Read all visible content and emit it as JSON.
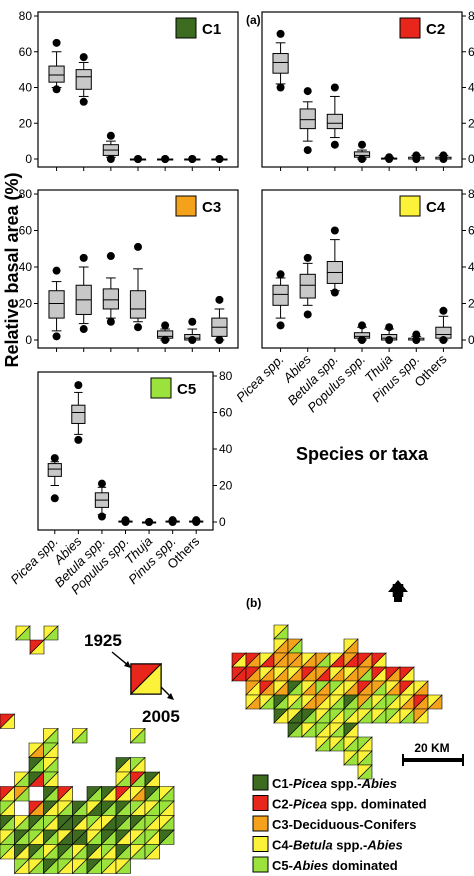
{
  "panel_a_label": "(a)",
  "panel_b_label": "(b)",
  "y_axis_label": "Relative basal area (%)",
  "x_axis_label": "Species or taxa",
  "species": [
    "Picea spp.",
    "Abies",
    "Betula spp.",
    "Populus spp.",
    "Thuja",
    "Pinus spp.",
    "Others"
  ],
  "species_italic": [
    true,
    true,
    true,
    true,
    true,
    true,
    false
  ],
  "y_ticks": [
    0,
    20,
    40,
    60,
    80
  ],
  "colors": {
    "C1": "#3d6b1f",
    "C2": "#e8261c",
    "C3": "#f4a21c",
    "C4": "#fcf23a",
    "C5": "#9be33c",
    "box_fill": "#c8c8c8"
  },
  "chart_data": [
    {
      "type": "box",
      "cluster": "C1",
      "ylim": [
        0,
        80
      ],
      "boxes": [
        {
          "outlier_hi": 65,
          "whisker_hi": 60,
          "q3": 52,
          "median": 47,
          "q1": 43,
          "whisker_lo": 40,
          "outlier_lo": 39
        },
        {
          "outlier_hi": 57,
          "whisker_hi": 54,
          "q3": 50,
          "median": 46,
          "q1": 39,
          "whisker_lo": 35,
          "outlier_lo": 32
        },
        {
          "outlier_hi": 13,
          "whisker_hi": 10,
          "q3": 8,
          "median": 5,
          "q1": 2,
          "whisker_lo": 1,
          "outlier_lo": 0
        },
        {
          "outlier_hi": 0,
          "whisker_hi": 0,
          "q3": 0,
          "median": 0,
          "q1": 0,
          "whisker_lo": 0,
          "outlier_lo": 0
        },
        {
          "outlier_hi": 0,
          "whisker_hi": 0,
          "q3": 0,
          "median": 0,
          "q1": 0,
          "whisker_lo": 0,
          "outlier_lo": 0
        },
        {
          "outlier_hi": 0,
          "whisker_hi": 0,
          "q3": 0,
          "median": 0,
          "q1": 0,
          "whisker_lo": 0,
          "outlier_lo": 0
        },
        {
          "outlier_hi": 0,
          "whisker_hi": 0,
          "q3": 0,
          "median": 0,
          "q1": 0,
          "whisker_lo": 0,
          "outlier_lo": 0
        }
      ]
    },
    {
      "type": "box",
      "cluster": "C2",
      "ylim": [
        0,
        80
      ],
      "boxes": [
        {
          "outlier_hi": 70,
          "whisker_hi": 65,
          "q3": 59,
          "median": 54,
          "q1": 48,
          "whisker_lo": 42,
          "outlier_lo": 40
        },
        {
          "outlier_hi": 38,
          "whisker_hi": 32,
          "q3": 28,
          "median": 22,
          "q1": 17,
          "whisker_lo": 10,
          "outlier_lo": 5
        },
        {
          "outlier_hi": 40,
          "whisker_hi": 35,
          "q3": 25,
          "median": 20,
          "q1": 17,
          "whisker_lo": 12,
          "outlier_lo": 8
        },
        {
          "outlier_hi": 8,
          "whisker_hi": 5,
          "q3": 4,
          "median": 2,
          "q1": 1,
          "whisker_lo": 0,
          "outlier_lo": 0
        },
        {
          "outlier_hi": 1,
          "whisker_hi": 1,
          "q3": 0.5,
          "median": 0,
          "q1": 0,
          "whisker_lo": 0,
          "outlier_lo": 0
        },
        {
          "outlier_hi": 2,
          "whisker_hi": 2,
          "q3": 1,
          "median": 0,
          "q1": 0,
          "whisker_lo": 0,
          "outlier_lo": 0
        },
        {
          "outlier_hi": 2,
          "whisker_hi": 2,
          "q3": 1,
          "median": 0,
          "q1": 0,
          "whisker_lo": 0,
          "outlier_lo": 0
        }
      ]
    },
    {
      "type": "box",
      "cluster": "C3",
      "ylim": [
        0,
        80
      ],
      "boxes": [
        {
          "outlier_hi": 38,
          "whisker_hi": 32,
          "q3": 27,
          "median": 20,
          "q1": 12,
          "whisker_lo": 5,
          "outlier_lo": 2
        },
        {
          "outlier_hi": 45,
          "whisker_hi": 40,
          "q3": 30,
          "median": 22,
          "q1": 14,
          "whisker_lo": 9,
          "outlier_lo": 6
        },
        {
          "outlier_hi": 46,
          "whisker_hi": 34,
          "q3": 28,
          "median": 22,
          "q1": 17,
          "whisker_lo": 12,
          "outlier_lo": 10
        },
        {
          "outlier_hi": 51,
          "whisker_hi": 39,
          "q3": 27,
          "median": 17,
          "q1": 12,
          "whisker_lo": 10,
          "outlier_lo": 7
        },
        {
          "outlier_hi": 8,
          "whisker_hi": 6,
          "q3": 5,
          "median": 2,
          "q1": 1,
          "whisker_lo": 0,
          "outlier_lo": 0
        },
        {
          "outlier_hi": 10,
          "whisker_hi": 6,
          "q3": 3,
          "median": 1,
          "q1": 0,
          "whisker_lo": 0,
          "outlier_lo": 0
        },
        {
          "outlier_hi": 22,
          "whisker_hi": 17,
          "q3": 12,
          "median": 7,
          "q1": 2,
          "whisker_lo": 0,
          "outlier_lo": 0
        }
      ]
    },
    {
      "type": "box",
      "cluster": "C4",
      "ylim": [
        0,
        80
      ],
      "boxes": [
        {
          "outlier_hi": 36,
          "whisker_hi": 34,
          "q3": 30,
          "median": 25,
          "q1": 19,
          "whisker_lo": 12,
          "outlier_lo": 8
        },
        {
          "outlier_hi": 45,
          "whisker_hi": 42,
          "q3": 36,
          "median": 30,
          "q1": 23,
          "whisker_lo": 19,
          "outlier_lo": 14
        },
        {
          "outlier_hi": 60,
          "whisker_hi": 55,
          "q3": 43,
          "median": 37,
          "q1": 31,
          "whisker_lo": 27,
          "outlier_lo": 26
        },
        {
          "outlier_hi": 8,
          "whisker_hi": 7,
          "q3": 4,
          "median": 2,
          "q1": 1,
          "whisker_lo": 0,
          "outlier_lo": 0
        },
        {
          "outlier_hi": 7,
          "whisker_hi": 6,
          "q3": 3,
          "median": 1,
          "q1": 0,
          "whisker_lo": 0,
          "outlier_lo": 0
        },
        {
          "outlier_hi": 3,
          "whisker_hi": 2,
          "q3": 1,
          "median": 0,
          "q1": 0,
          "whisker_lo": 0,
          "outlier_lo": 0
        },
        {
          "outlier_hi": 16,
          "whisker_hi": 13,
          "q3": 7,
          "median": 3,
          "q1": 1,
          "whisker_lo": 0,
          "outlier_lo": 0
        }
      ]
    },
    {
      "type": "box",
      "cluster": "C5",
      "ylim": [
        0,
        80
      ],
      "boxes": [
        {
          "outlier_hi": 35,
          "whisker_hi": 33,
          "q3": 32,
          "median": 29,
          "q1": 25,
          "whisker_lo": 20,
          "outlier_lo": 13
        },
        {
          "outlier_hi": 75,
          "whisker_hi": 71,
          "q3": 64,
          "median": 60,
          "q1": 54,
          "whisker_lo": 48,
          "outlier_lo": 45
        },
        {
          "outlier_hi": 21,
          "whisker_hi": 19,
          "q3": 16,
          "median": 12,
          "q1": 8,
          "whisker_lo": 4,
          "outlier_lo": 3
        },
        {
          "outlier_hi": 1,
          "whisker_hi": 1,
          "q3": 0.5,
          "median": 0,
          "q1": 0,
          "whisker_lo": 0,
          "outlier_lo": 0
        },
        {
          "outlier_hi": 0,
          "whisker_hi": 0,
          "q3": 0,
          "median": 0,
          "q1": 0,
          "whisker_lo": 0,
          "outlier_lo": 0
        },
        {
          "outlier_hi": 1,
          "whisker_hi": 1,
          "q3": 0.5,
          "median": 0,
          "q1": 0,
          "whisker_lo": 0,
          "outlier_lo": 0
        },
        {
          "outlier_hi": 1,
          "whisker_hi": 1,
          "q3": 0.5,
          "median": 0,
          "q1": 0,
          "whisker_lo": 0,
          "outlier_lo": 0
        }
      ]
    }
  ],
  "map": {
    "year_top": "1925",
    "year_bottom": "2005",
    "north_label": "N",
    "scale_label": "20 KM",
    "legend": [
      {
        "cluster": "C1",
        "prefix": "C1-",
        "parts": [
          {
            "text": "Picea",
            "italic": true
          },
          {
            "text": " spp.-",
            "italic": false
          },
          {
            "text": "Abies",
            "italic": true
          }
        ]
      },
      {
        "cluster": "C2",
        "prefix": "C2-",
        "parts": [
          {
            "text": "Picea",
            "italic": true
          },
          {
            "text": " spp. dominated",
            "italic": false
          }
        ]
      },
      {
        "cluster": "C3",
        "prefix": "C3-",
        "parts": [
          {
            "text": "Deciduous-Conifers",
            "italic": false
          }
        ]
      },
      {
        "cluster": "C4",
        "prefix": "C4-",
        "parts": [
          {
            "text": "Betula",
            "italic": true
          },
          {
            "text": " spp.-",
            "italic": false
          },
          {
            "text": "Abies",
            "italic": true
          }
        ]
      },
      {
        "cluster": "C5",
        "prefix": "C5-",
        "parts": [
          {
            "text": "Abies",
            "italic": true
          },
          {
            "text": " dominated",
            "italic": false
          }
        ]
      }
    ]
  }
}
